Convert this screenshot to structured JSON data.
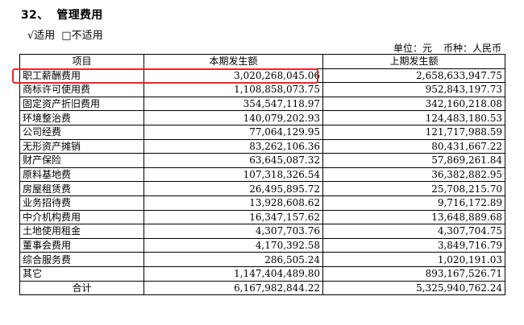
{
  "heading": {
    "number": "32、",
    "title": "管理费用"
  },
  "applicability": {
    "applicable": "√适用",
    "not_applicable": "□不适用"
  },
  "unit": {
    "unit_label": "单位：元",
    "currency_label": "币种：人民币"
  },
  "table": {
    "headers": [
      "项目",
      "本期发生额",
      "上期发生额"
    ],
    "rows": [
      {
        "item": "职工薪酬费用",
        "current": "3,020,268,045.06",
        "previous": "2,658,633,947.75"
      },
      {
        "item": "商标许可使用费",
        "current": "1,108,858,073.75",
        "previous": "952,843,197.73"
      },
      {
        "item": "固定资产折旧费用",
        "current": "354,547,118.97",
        "previous": "342,160,218.08"
      },
      {
        "item": "环境整治费",
        "current": "140,079,202.93",
        "previous": "124,483,180.53"
      },
      {
        "item": "公司经费",
        "current": "77,064,129.95",
        "previous": "121,717,988.59"
      },
      {
        "item": "无形资产摊销",
        "current": "83,262,106.36",
        "previous": "80,431,667.22"
      },
      {
        "item": "财产保险",
        "current": "63,645,087.32",
        "previous": "57,869,261.84"
      },
      {
        "item": "原料基地费",
        "current": "107,318,326.54",
        "previous": "36,382,882.95"
      },
      {
        "item": "房屋租赁费",
        "current": "26,495,895.72",
        "previous": "25,708,215.70"
      },
      {
        "item": "业务招待费",
        "current": "13,928,608.62",
        "previous": "9,716,172.89"
      },
      {
        "item": "中介机构费用",
        "current": "16,347,157.62",
        "previous": "13,648,889.68"
      },
      {
        "item": "土地使用租金",
        "current": "4,307,703.76",
        "previous": "4,307,704.75"
      },
      {
        "item": "董事会费用",
        "current": "4,170,392.58",
        "previous": "3,849,716.79"
      },
      {
        "item": "综合服务费",
        "current": "286,505.24",
        "previous": "1,020,191.03"
      },
      {
        "item": "其它",
        "current": "1,147,404,489.80",
        "previous": "893,167,526.71"
      }
    ],
    "total": {
      "item": "合计",
      "current": "6,167,982,844.22",
      "previous": "5,325,940,762.24"
    }
  },
  "highlight_color": "#e8282d"
}
